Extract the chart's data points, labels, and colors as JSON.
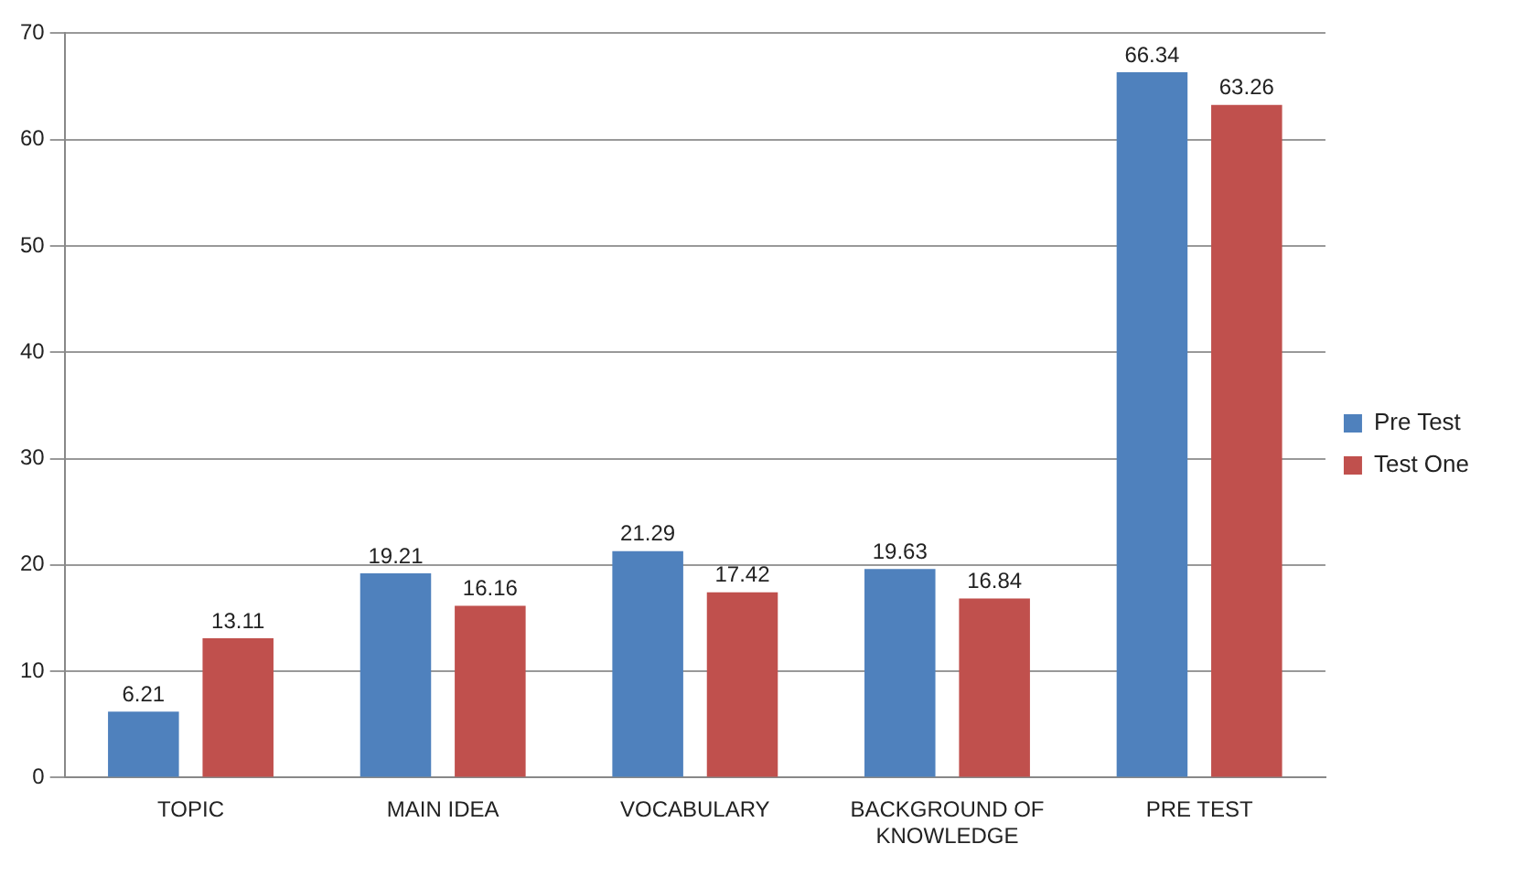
{
  "chart_data": {
    "type": "bar",
    "categories": [
      "TOPIC",
      "MAIN IDEA",
      "VOCABULARY",
      "BACKGROUND OF KNOWLEDGE",
      "PRE TEST"
    ],
    "series": [
      {
        "name": "Pre Test",
        "color": "#4f81bd",
        "values": [
          6.21,
          19.21,
          21.29,
          19.63,
          66.34
        ]
      },
      {
        "name": "Test One",
        "color": "#c0504d",
        "values": [
          13.11,
          16.16,
          17.42,
          16.84,
          63.26
        ]
      }
    ],
    "ylim": [
      0,
      70
    ],
    "yticks": [
      0,
      10,
      20,
      30,
      40,
      50,
      60,
      70
    ],
    "grid": "y",
    "legend": "right",
    "data_labels": true
  }
}
